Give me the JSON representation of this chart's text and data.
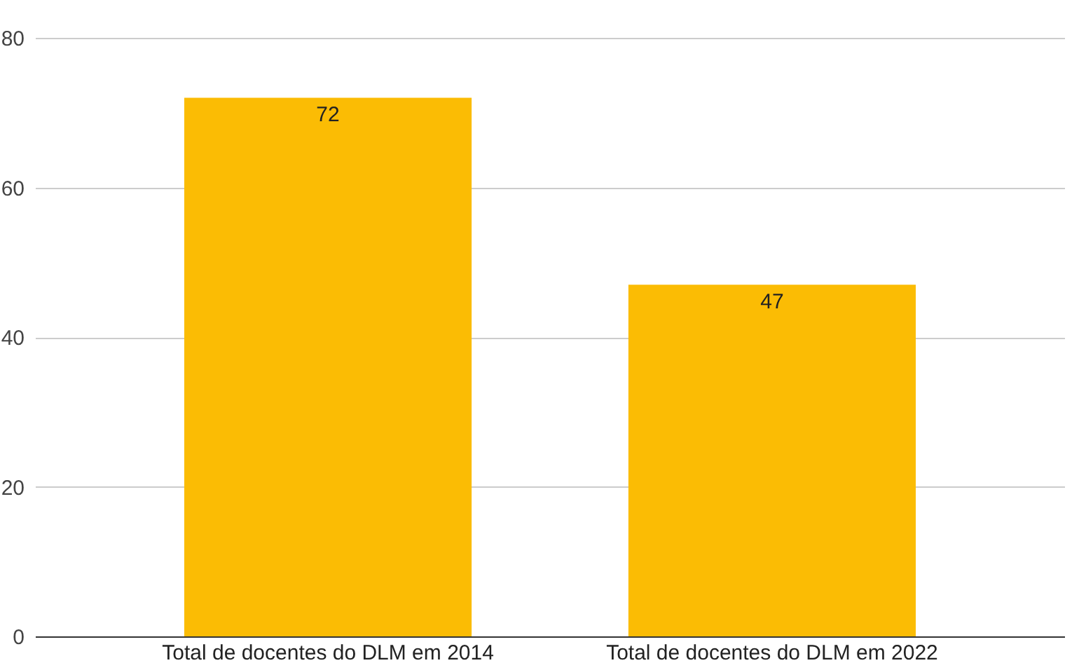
{
  "chart_data": {
    "type": "bar",
    "categories": [
      "Total de docentes do DLM em 2014",
      "Total de docentes do DLM em 2022"
    ],
    "values": [
      72,
      47
    ],
    "color": "#fbbc04",
    "ylim": [
      0,
      80
    ],
    "yticks": [
      0,
      20,
      40,
      60,
      80
    ],
    "grid": "y",
    "data_labels": true
  }
}
